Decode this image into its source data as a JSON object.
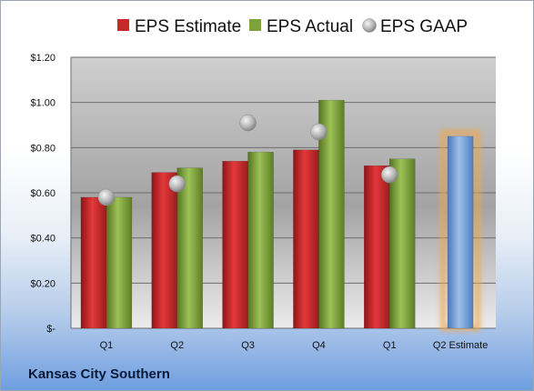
{
  "chart_data": {
    "type": "bar",
    "title": "",
    "xlabel": "",
    "ylabel": "",
    "categories": [
      "Q1",
      "Q2",
      "Q3",
      "Q4",
      "Q1",
      "Q2 Estimate"
    ],
    "series": [
      {
        "name": "EPS Estimate",
        "kind": "bar",
        "color": "#c8282a",
        "values": [
          0.58,
          0.69,
          0.74,
          0.79,
          0.72,
          null
        ]
      },
      {
        "name": "EPS Actual",
        "kind": "bar",
        "color": "#7ea33a",
        "values": [
          0.58,
          0.71,
          0.78,
          1.01,
          0.75,
          null
        ]
      },
      {
        "name": "EPS GAAP",
        "kind": "marker",
        "color": "#a9a9a9",
        "values": [
          0.58,
          0.64,
          0.91,
          0.87,
          0.68,
          null
        ]
      }
    ],
    "estimate": {
      "category": "Q2 Estimate",
      "value": 0.85,
      "color": "#6f9fd8",
      "glow_color": "#f3a64a"
    },
    "ylim": [
      0,
      1.2
    ],
    "yticks": [
      {
        "value": 0,
        "label": "$-"
      },
      {
        "value": 0.2,
        "label": "$0.20"
      },
      {
        "value": 0.4,
        "label": "$0.40"
      },
      {
        "value": 0.6,
        "label": "$0.60"
      },
      {
        "value": 0.8,
        "label": "$0.80"
      },
      {
        "value": 1.0,
        "label": "$1.00"
      },
      {
        "value": 1.2,
        "label": "$1.20"
      }
    ],
    "grid": true,
    "legend": "top"
  },
  "footer": {
    "company": "Kansas City Southern"
  }
}
